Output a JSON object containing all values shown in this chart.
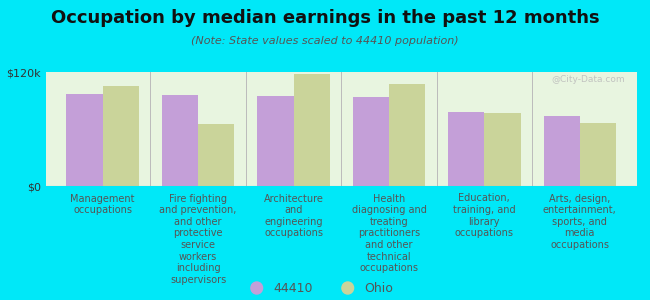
{
  "title": "Occupation by median earnings in the past 12 months",
  "subtitle": "(Note: State values scaled to 44410 population)",
  "categories": [
    "Management\noccupations",
    "Fire fighting\nand prevention,\nand other\nprotective\nservice\nworkers\nincluding\nsupervisors",
    "Architecture\nand\nengineering\noccupations",
    "Health\ndiagnosing and\ntreating\npractitioners\nand other\ntechnical\noccupations",
    "Education,\ntraining, and\nlibrary\noccupations",
    "Arts, design,\nentertainment,\nsports, and\nmedia\noccupations"
  ],
  "values_44410": [
    97000,
    96000,
    95000,
    94000,
    78000,
    74000
  ],
  "values_ohio": [
    105000,
    65000,
    118000,
    107000,
    77000,
    66000
  ],
  "color_44410": "#c49fd8",
  "color_ohio": "#cad49a",
  "background_chart": "#e8f5e0",
  "background_fig": "#00e8f8",
  "ymax": 120000,
  "ytick_labels": [
    "$0",
    "$120k"
  ],
  "legend_44410": "44410",
  "legend_ohio": "Ohio",
  "watermark": "@City-Data.com",
  "title_fontsize": 13,
  "subtitle_fontsize": 8,
  "label_fontsize": 7,
  "ytick_fontsize": 8
}
